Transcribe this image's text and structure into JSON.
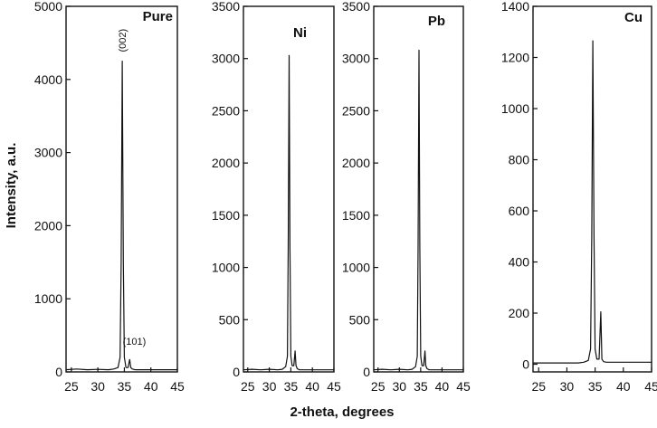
{
  "figure": {
    "xlabel": "2-theta, degrees",
    "ylabel": "Intensity, a.u."
  },
  "chart_data": [
    {
      "type": "line",
      "title": "Pure",
      "xlim": [
        24,
        45
      ],
      "ylim": [
        0,
        5000
      ],
      "xticks": [
        25,
        30,
        35,
        40,
        45
      ],
      "yticks": [
        0,
        1000,
        2000,
        3000,
        4000,
        5000
      ],
      "grid": false,
      "series": [
        {
          "x": [
            24,
            26,
            28,
            30,
            32,
            33,
            33.8,
            34.2,
            34.4,
            34.6,
            34.8,
            35.0,
            35.3,
            35.7,
            36.0,
            36.2,
            36.5,
            37,
            38,
            39,
            40,
            42,
            45
          ],
          "y": [
            30,
            40,
            30,
            35,
            30,
            40,
            60,
            200,
            1500,
            4250,
            1500,
            200,
            60,
            60,
            170,
            60,
            40,
            30,
            30,
            30,
            30,
            30,
            30
          ]
        }
      ],
      "annotations": [
        {
          "text": "(002)",
          "x": 34.6,
          "y": 4300
        },
        {
          "text": "(101)",
          "x": 36.2,
          "y": 250
        }
      ]
    },
    {
      "type": "line",
      "title": "Ni",
      "xlim": [
        24,
        45
      ],
      "ylim": [
        0,
        3500
      ],
      "xticks": [
        25,
        30,
        35,
        40,
        45
      ],
      "yticks": [
        0,
        500,
        1000,
        1500,
        2000,
        2500,
        3000,
        3500
      ],
      "grid": false,
      "series": [
        {
          "x": [
            24,
            26,
            28,
            30,
            32,
            33,
            33.8,
            34.2,
            34.4,
            34.6,
            34.8,
            35.0,
            35.3,
            35.7,
            36.0,
            36.2,
            36.5,
            37,
            38,
            40,
            42,
            45
          ],
          "y": [
            20,
            25,
            20,
            25,
            20,
            25,
            50,
            150,
            1200,
            3030,
            1200,
            150,
            60,
            60,
            200,
            60,
            30,
            20,
            20,
            20,
            20,
            20
          ]
        }
      ]
    },
    {
      "type": "line",
      "title": "Pb",
      "xlim": [
        24,
        45
      ],
      "ylim": [
        0,
        3500
      ],
      "xticks": [
        25,
        30,
        35,
        40,
        45
      ],
      "yticks": [
        0,
        500,
        1000,
        1500,
        2000,
        2500,
        3000,
        3500
      ],
      "grid": false,
      "series": [
        {
          "x": [
            24,
            26,
            28,
            30,
            32,
            33,
            33.8,
            34.2,
            34.4,
            34.6,
            34.8,
            35.0,
            35.3,
            35.7,
            36.0,
            36.2,
            36.5,
            37,
            38,
            40,
            42,
            45
          ],
          "y": [
            20,
            25,
            20,
            25,
            20,
            25,
            50,
            150,
            1200,
            3080,
            1200,
            150,
            60,
            60,
            200,
            60,
            30,
            20,
            20,
            20,
            20,
            20
          ]
        }
      ]
    },
    {
      "type": "line",
      "title": "Cu",
      "xlim": [
        24,
        45
      ],
      "ylim": [
        -30,
        1400
      ],
      "xticks": [
        25,
        30,
        35,
        40,
        45
      ],
      "yticks": [
        0,
        200,
        400,
        600,
        800,
        1000,
        1200,
        1400
      ],
      "grid": false,
      "series": [
        {
          "x": [
            24,
            26,
            28,
            30,
            32,
            33,
            33.8,
            34.2,
            34.4,
            34.6,
            34.8,
            35.0,
            35.3,
            35.7,
            36.0,
            36.2,
            36.5,
            37,
            38,
            40,
            42,
            45
          ],
          "y": [
            5,
            5,
            5,
            5,
            5,
            8,
            15,
            60,
            500,
            1265,
            500,
            60,
            20,
            20,
            205,
            20,
            10,
            8,
            8,
            8,
            8,
            8
          ]
        }
      ]
    }
  ]
}
